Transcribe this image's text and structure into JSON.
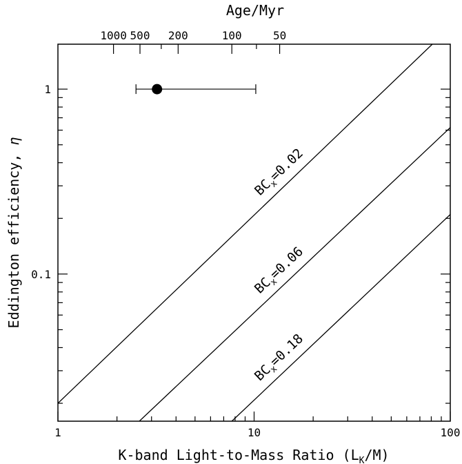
{
  "chart_data": {
    "type": "line",
    "xlabel": "K-band Light-to-Mass Ratio (L",
    "xlabel_sub": "K",
    "xlabel_end": "/M)",
    "ylabel": "Eddington efficiency, ",
    "ylabel_symbol": "η",
    "top_xlabel": "Age/Myr",
    "x_scale": "log",
    "y_scale": "log",
    "xlim": [
      1,
      100
    ],
    "ylim": [
      0.016,
      1.75
    ],
    "x_ticks": [
      {
        "value": 1,
        "label": "1"
      },
      {
        "value": 10,
        "label": "10"
      },
      {
        "value": 100,
        "label": "100"
      }
    ],
    "y_ticks": [
      {
        "value": 0.1,
        "label": "0.1"
      },
      {
        "value": 1,
        "label": "1"
      }
    ],
    "top_ticks": [
      {
        "value": 1.92,
        "label": "1000"
      },
      {
        "value": 2.62,
        "label": "500"
      },
      {
        "value": 4.1,
        "label": "200"
      },
      {
        "value": 7.7,
        "label": "100"
      },
      {
        "value": 13.5,
        "label": "50"
      }
    ],
    "grid": false,
    "series": [
      {
        "name": "BC_x=0.02",
        "label_main": "BC",
        "label_sub": "x",
        "label_value": "=0.02",
        "x": [
          1,
          81
        ],
        "y": [
          0.02,
          1.75
        ]
      },
      {
        "name": "BC_x=0.06",
        "label_main": "BC",
        "label_sub": "x",
        "label_value": "=0.06",
        "x": [
          2.6,
          100
        ],
        "y": [
          0.016,
          0.62
        ]
      },
      {
        "name": "BC_x=0.18",
        "label_main": "BC",
        "label_sub": "x",
        "label_value": "=0.18",
        "x": [
          7.7,
          100
        ],
        "y": [
          0.016,
          0.21
        ]
      }
    ],
    "points": [
      {
        "x": 3.2,
        "y": 1.0,
        "xerr_low": 2.5,
        "xerr_high": 10.2
      }
    ]
  }
}
